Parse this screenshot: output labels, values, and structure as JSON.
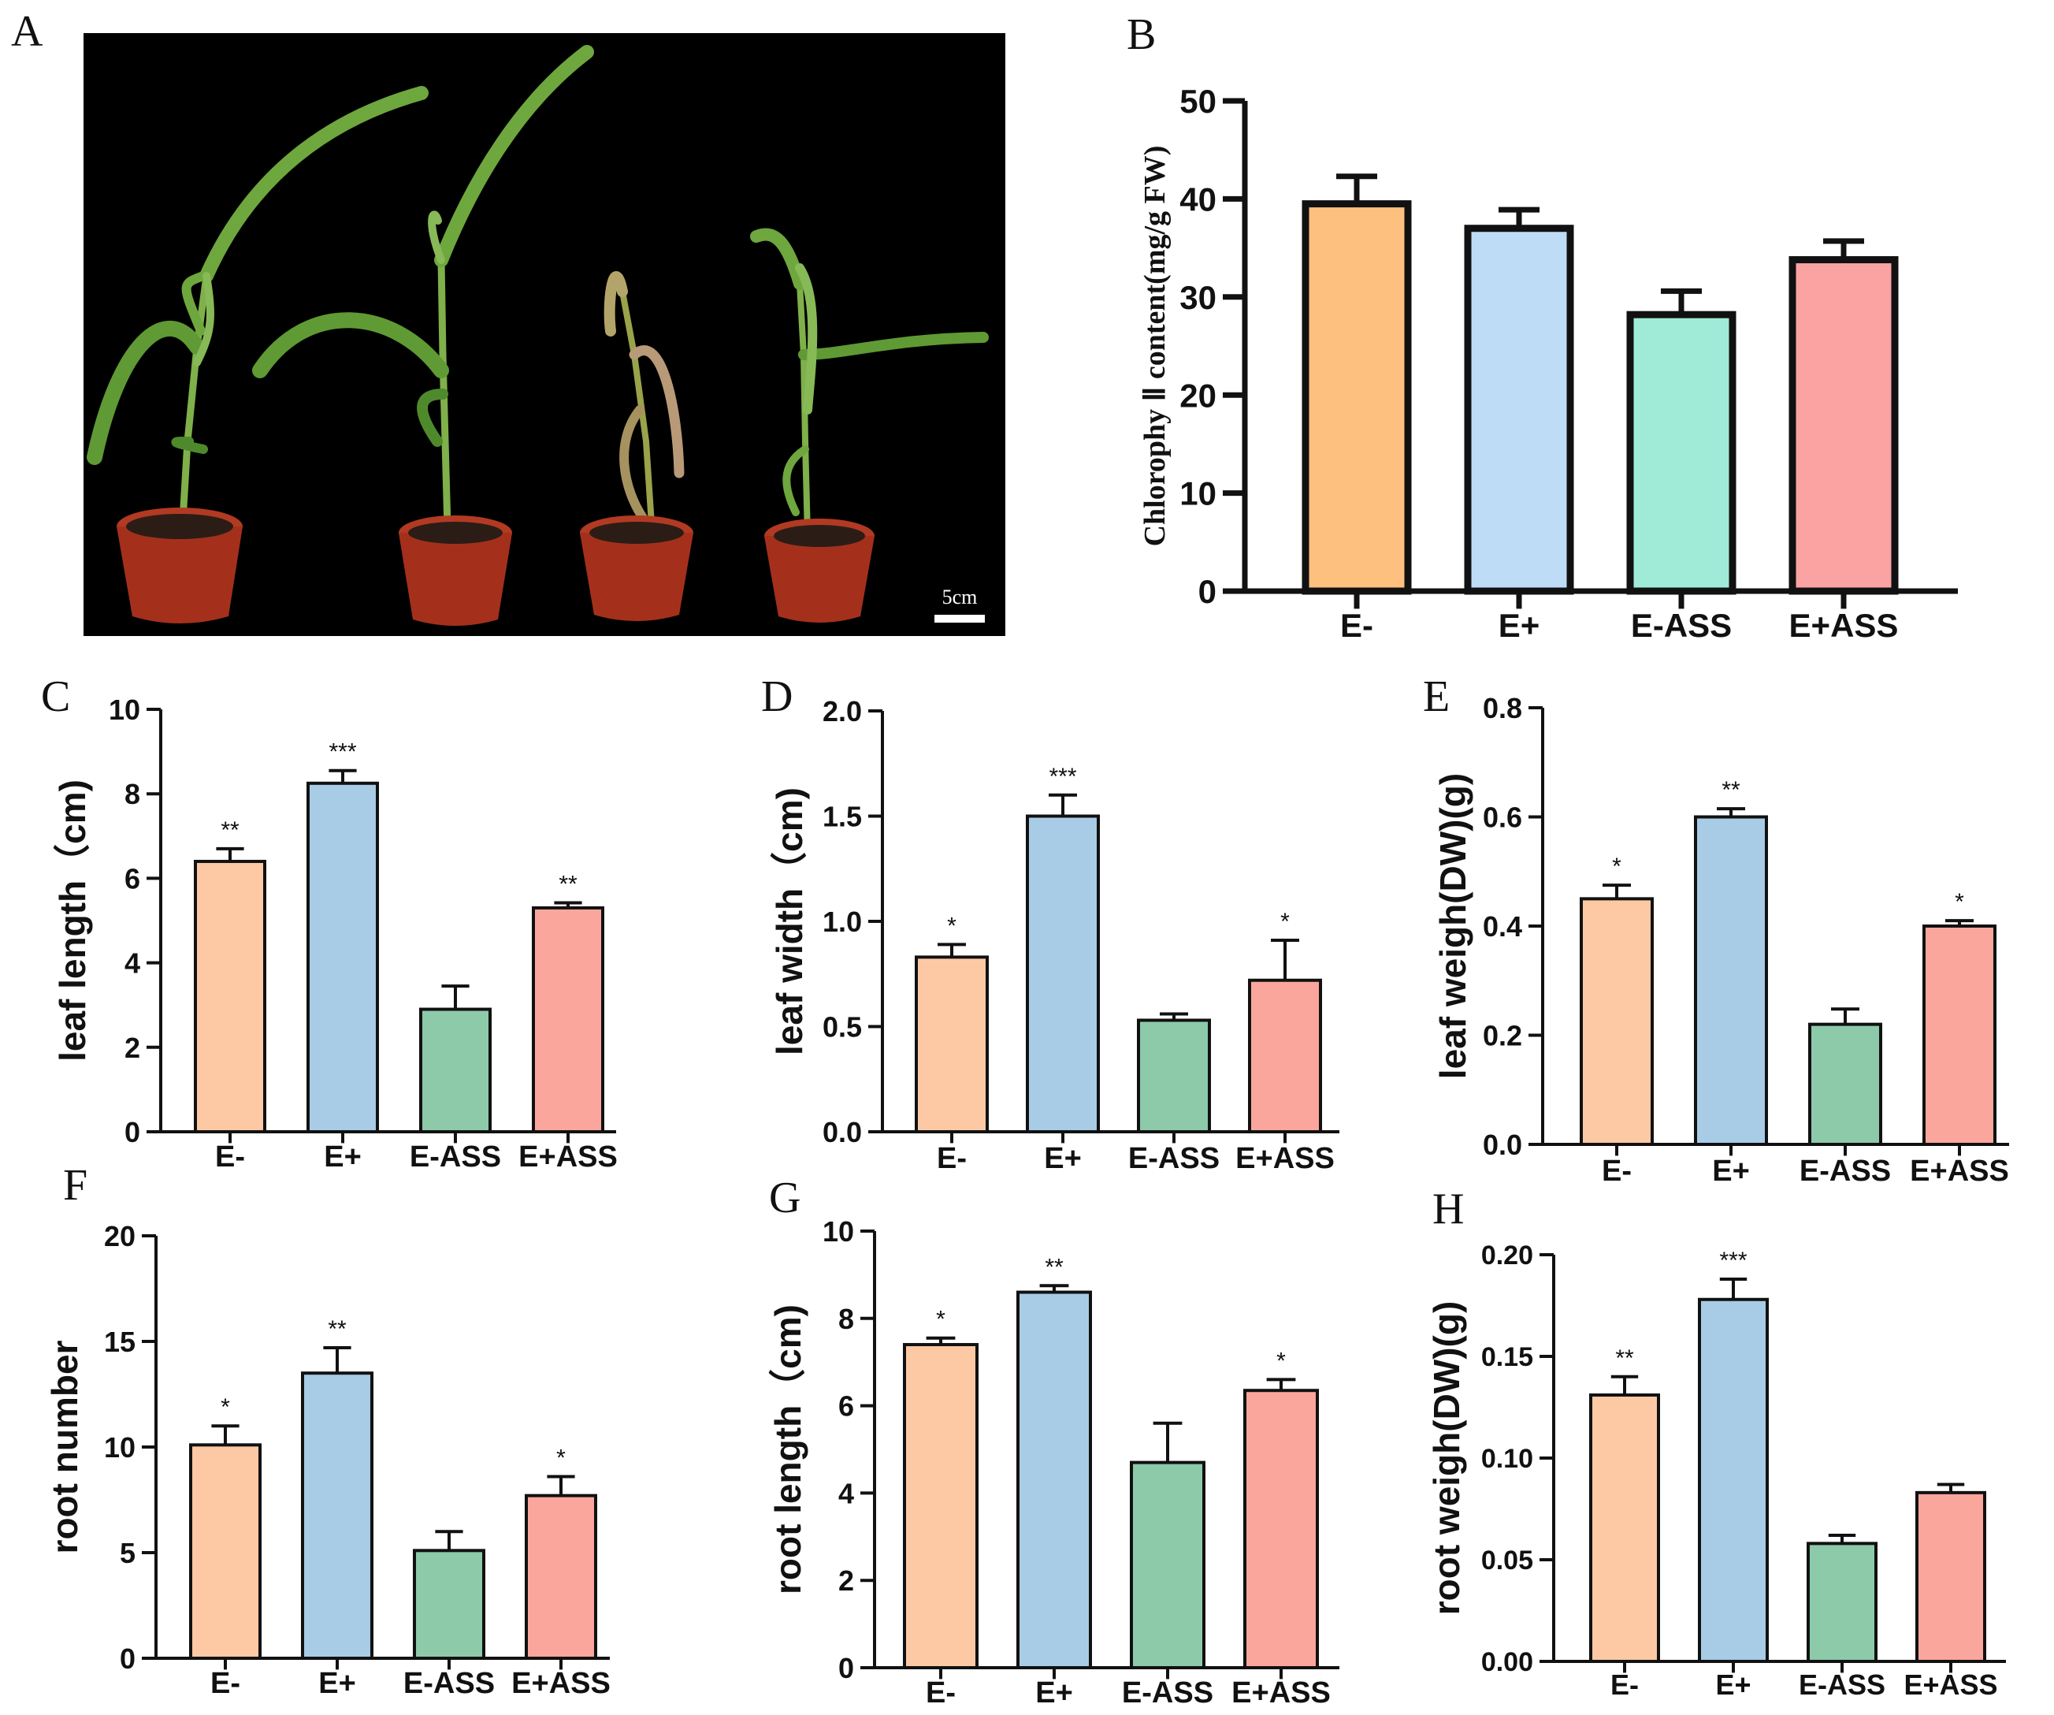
{
  "panel_letters": [
    "A",
    "B",
    "C",
    "D",
    "E",
    "F",
    "G",
    "H"
  ],
  "photo": {
    "scale_label": "5cm",
    "background": "#000000",
    "pot_color": "#a4301c",
    "leaf_color": "#6fa63c"
  },
  "colors": {
    "E-": "#fdc9a4",
    "E+": "#a8cbe6",
    "E-ASS": "#8ccaa9",
    "E+ASS": "#fba69c"
  },
  "colors_B": {
    "E-": "#fdc07e",
    "E+": "#bfdcf7",
    "E-ASS": "#a0ead8",
    "E+ASS": "#fba2a3"
  },
  "chart_data": [
    {
      "panel": "B",
      "type": "bar",
      "categories": [
        "E-",
        "E+",
        "E-ASS",
        "E+ASS"
      ],
      "values": [
        39.5,
        37.0,
        28.2,
        33.8
      ],
      "errors": [
        2.8,
        1.9,
        2.4,
        1.9
      ],
      "sig": [
        "",
        "",
        "",
        ""
      ],
      "ylabel": "Chlorophy Ⅱ content(mg/g FW)",
      "ylim": [
        0,
        50
      ],
      "yticks": [
        "0",
        "10",
        "20",
        "30",
        "40",
        "50"
      ]
    },
    {
      "panel": "C",
      "type": "bar",
      "categories": [
        "E-",
        "E+",
        "E-ASS",
        "E+ASS"
      ],
      "values": [
        6.4,
        8.25,
        2.9,
        5.3
      ],
      "errors": [
        0.3,
        0.3,
        0.55,
        0.12
      ],
      "sig": [
        "**",
        "***",
        "",
        "**"
      ],
      "ylabel": "leaf length（cm)",
      "ylim": [
        0,
        10
      ],
      "yticks": [
        "0",
        "2",
        "4",
        "6",
        "8",
        "10"
      ]
    },
    {
      "panel": "D",
      "type": "bar",
      "categories": [
        "E-",
        "E+",
        "E-ASS",
        "E+ASS"
      ],
      "values": [
        0.83,
        1.5,
        0.53,
        0.72
      ],
      "errors": [
        0.06,
        0.1,
        0.03,
        0.19
      ],
      "sig": [
        "*",
        "***",
        "",
        "*"
      ],
      "ylabel": "leaf width（cm)",
      "ylim": [
        0,
        2.0
      ],
      "yticks": [
        "0.0",
        "0.5",
        "1.0",
        "1.5",
        "2.0"
      ]
    },
    {
      "panel": "E",
      "type": "bar",
      "categories": [
        "E-",
        "E+",
        "E-ASS",
        "E+ASS"
      ],
      "values": [
        0.45,
        0.6,
        0.22,
        0.4
      ],
      "errors": [
        0.025,
        0.015,
        0.028,
        0.01
      ],
      "sig": [
        "*",
        "**",
        "",
        "*"
      ],
      "ylabel": "leaf weigh(DW)(g)",
      "ylim": [
        0,
        0.8
      ],
      "yticks": [
        "0.0",
        "0.2",
        "0.4",
        "0.6",
        "0.8"
      ]
    },
    {
      "panel": "F",
      "type": "bar",
      "categories": [
        "E-",
        "E+",
        "E-ASS",
        "E+ASS"
      ],
      "values": [
        10.1,
        13.5,
        5.1,
        7.7
      ],
      "errors": [
        0.9,
        1.2,
        0.9,
        0.9
      ],
      "sig": [
        "*",
        "**",
        "",
        "*"
      ],
      "ylabel": "root number",
      "ylim": [
        0,
        20
      ],
      "yticks": [
        "0",
        "5",
        "10",
        "15",
        "20"
      ]
    },
    {
      "panel": "G",
      "type": "bar",
      "categories": [
        "E-",
        "E+",
        "E-ASS",
        "E+ASS"
      ],
      "values": [
        7.4,
        8.6,
        4.7,
        6.35
      ],
      "errors": [
        0.15,
        0.15,
        0.9,
        0.25
      ],
      "sig": [
        "*",
        "**",
        "",
        "*"
      ],
      "ylabel": "root length（cm)",
      "ylim": [
        0,
        10
      ],
      "yticks": [
        "0",
        "2",
        "4",
        "6",
        "8",
        "10"
      ]
    },
    {
      "panel": "H",
      "type": "bar",
      "categories": [
        "E-",
        "E+",
        "E-ASS",
        "E+ASS"
      ],
      "values": [
        0.131,
        0.178,
        0.058,
        0.083
      ],
      "errors": [
        0.009,
        0.01,
        0.004,
        0.004
      ],
      "sig": [
        "**",
        "***",
        "",
        ""
      ],
      "ylabel": "root weigh(DW)(g)",
      "ylim": [
        0,
        0.2
      ],
      "yticks": [
        "0.00",
        "0.05",
        "0.10",
        "0.15",
        "0.20"
      ]
    }
  ]
}
